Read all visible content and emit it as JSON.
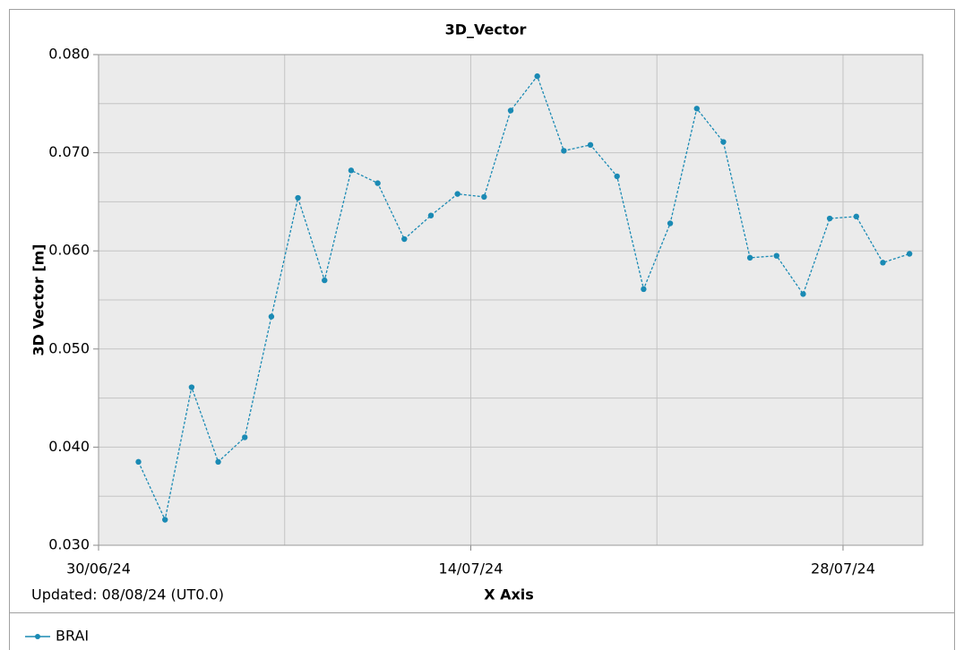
{
  "chart_data": {
    "type": "line",
    "title": "3D_Vector",
    "xlabel": "X Axis",
    "ylabel": "3D Vector [m]",
    "note": "Updated: 08/08/24 (UT0.0)",
    "x": [
      "2024-07-01",
      "2024-07-02",
      "2024-07-03",
      "2024-07-04",
      "2024-07-05",
      "2024-07-06",
      "2024-07-07",
      "2024-07-08",
      "2024-07-09",
      "2024-07-10",
      "2024-07-11",
      "2024-07-12",
      "2024-07-13",
      "2024-07-14",
      "2024-07-15",
      "2024-07-16",
      "2024-07-17",
      "2024-07-18",
      "2024-07-19",
      "2024-07-20",
      "2024-07-21",
      "2024-07-22",
      "2024-07-23",
      "2024-07-24",
      "2024-07-25",
      "2024-07-26",
      "2024-07-27",
      "2024-07-28",
      "2024-07-29",
      "2024-07-30"
    ],
    "series": [
      {
        "name": "BRAI",
        "color": "#1a8ab4",
        "values": [
          0.0385,
          0.0326,
          0.0461,
          0.0385,
          0.041,
          0.0533,
          0.0654,
          0.057,
          0.0682,
          0.0669,
          0.0612,
          0.0636,
          0.0658,
          0.0655,
          0.0743,
          0.0778,
          0.0702,
          0.0708,
          0.0676,
          0.0561,
          0.0628,
          0.0745,
          0.0711,
          0.0593,
          0.0595,
          0.0556,
          0.0633,
          0.0635,
          0.0588,
          0.0597
        ]
      }
    ],
    "xlim": [
      "2024-06-30",
      "2024-07-31"
    ],
    "xticks": [
      {
        "value": "2024-06-30",
        "label": "30/06/24"
      },
      {
        "value": "2024-07-14",
        "label": "14/07/24"
      },
      {
        "value": "2024-07-28",
        "label": "28/07/24"
      }
    ],
    "xminor_ticks": [
      "2024-07-07",
      "2024-07-21"
    ],
    "ylim": [
      0.03,
      0.08
    ],
    "yticks": [
      {
        "value": 0.03,
        "label": "0.030"
      },
      {
        "value": 0.04,
        "label": "0.040"
      },
      {
        "value": 0.05,
        "label": "0.050"
      },
      {
        "value": 0.06,
        "label": "0.060"
      },
      {
        "value": 0.07,
        "label": "0.070"
      },
      {
        "value": 0.08,
        "label": "0.080"
      }
    ],
    "yminor_ticks": [
      0.035,
      0.045,
      0.055,
      0.065,
      0.075
    ],
    "grid": true,
    "line_style": "dashed",
    "legend": "bottom-left"
  }
}
